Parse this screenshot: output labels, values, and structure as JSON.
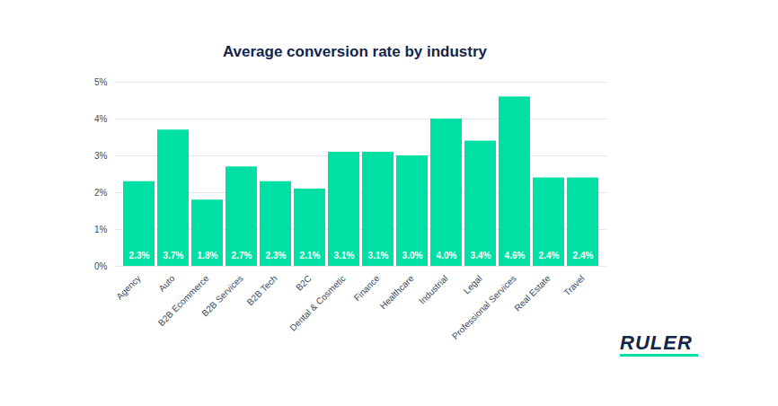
{
  "chart_data": {
    "type": "bar",
    "title": "Average conversion rate by industry",
    "categories": [
      "Agency",
      "Auto",
      "B2B Ecommerce",
      "B2B Services",
      "B2B Tech",
      "B2C",
      "Dental & Cosmetic",
      "Finance",
      "Healthcare",
      "Industrial",
      "Legal",
      "Professional Services",
      "Real Estate",
      "Travel"
    ],
    "values": [
      2.3,
      3.7,
      1.8,
      2.7,
      2.3,
      2.1,
      3.1,
      3.1,
      3.0,
      4.0,
      3.4,
      4.6,
      2.4,
      2.4
    ],
    "value_labels": [
      "2.3%",
      "3.7%",
      "1.8%",
      "2.7%",
      "2.3%",
      "2.1%",
      "3.1%",
      "3.1%",
      "3.0%",
      "4.0%",
      "3.4%",
      "4.6%",
      "2.4%",
      "2.4%"
    ],
    "color": "#00e0a4",
    "ylim": [
      0,
      5
    ],
    "yticks": [
      {
        "value": 0,
        "label": "0%"
      },
      {
        "value": 1,
        "label": "1%"
      },
      {
        "value": 2,
        "label": "2%"
      },
      {
        "value": 3,
        "label": "3%"
      },
      {
        "value": 4,
        "label": "4%"
      },
      {
        "value": 5,
        "label": "5%"
      }
    ],
    "grid": true,
    "data_labels": true,
    "annotations": [
      "RULER"
    ]
  }
}
